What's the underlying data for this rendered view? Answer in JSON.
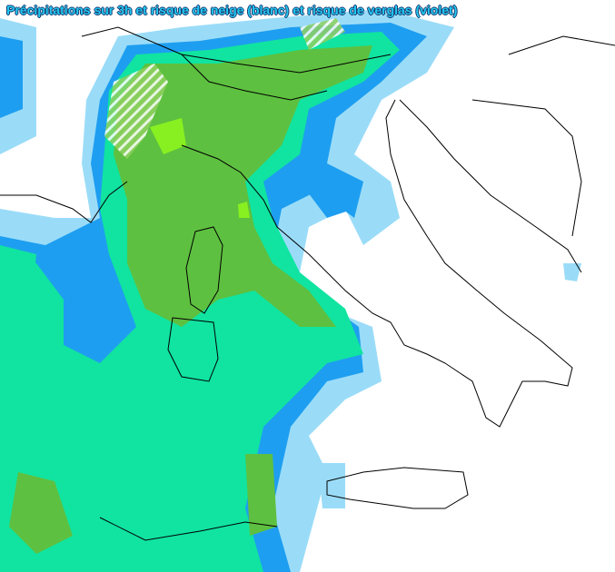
{
  "map": {
    "title": "Précipitations sur 3h et risque de neige (blanc) et risque de verglas (violet)"
  }
}
